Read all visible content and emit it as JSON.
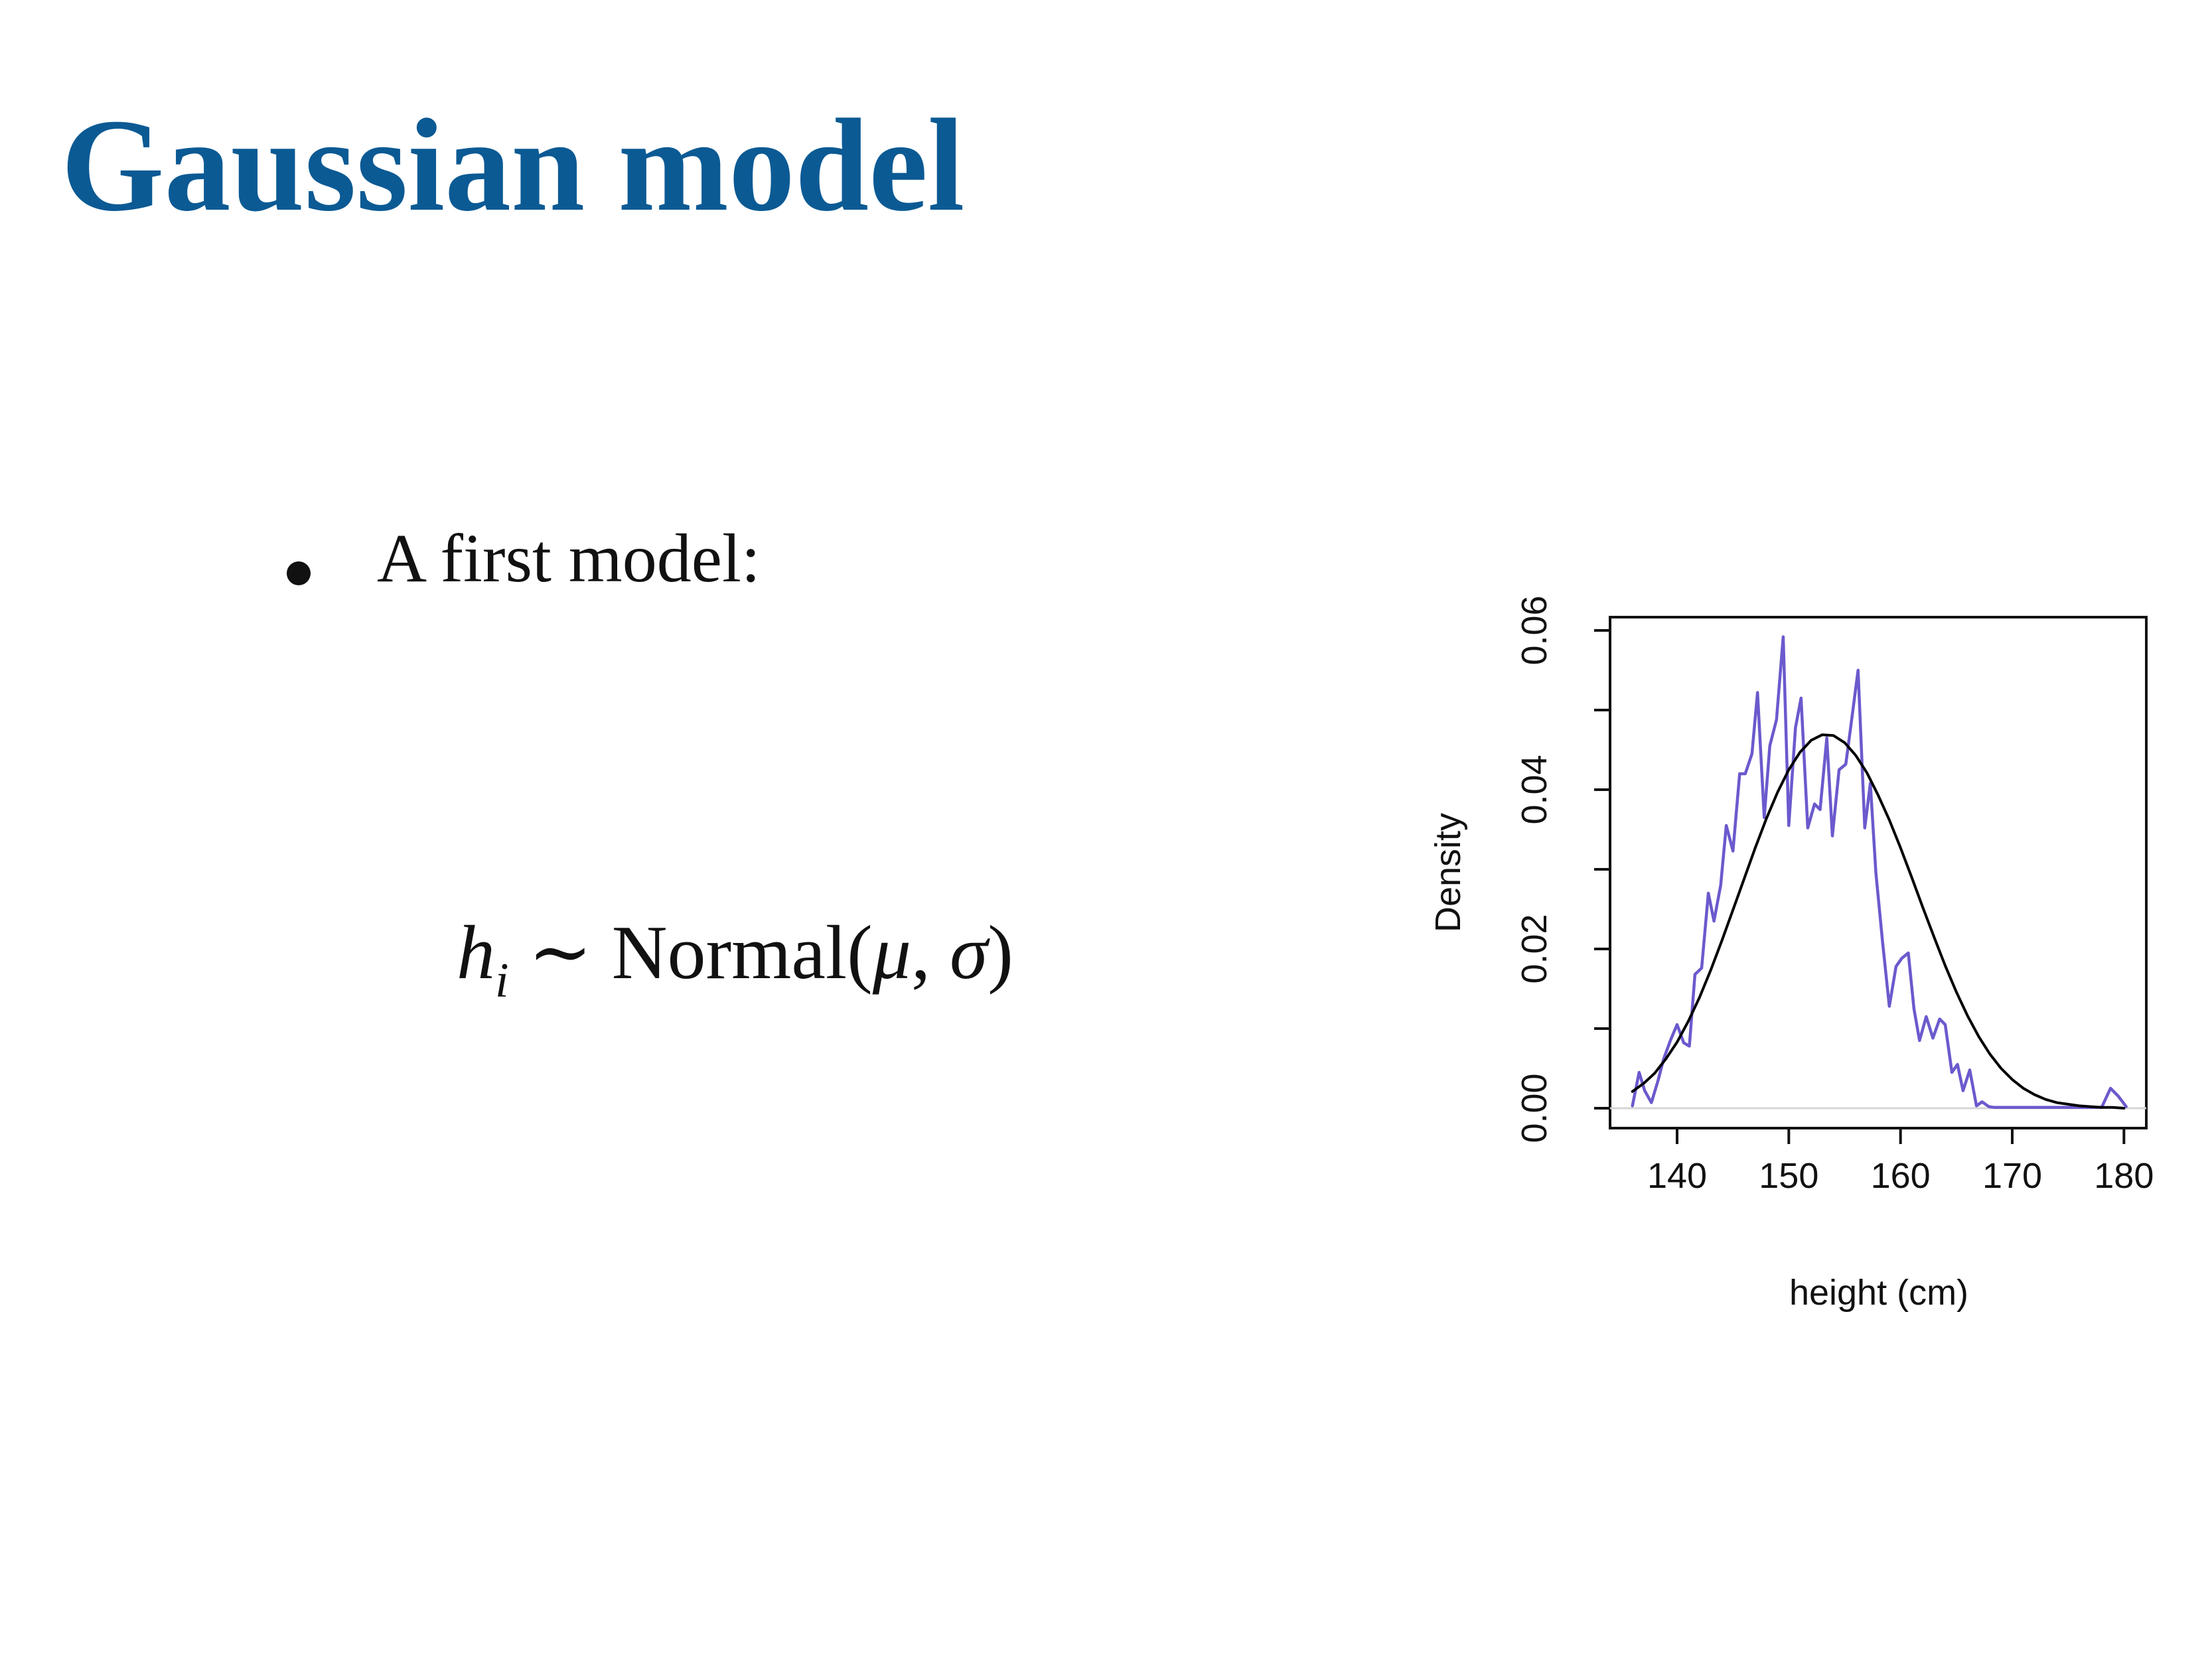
{
  "slide": {
    "title": "Gaussian model",
    "bullet": "A first model:",
    "formula": {
      "var": "h",
      "sub": "i",
      "tilde": "∼",
      "dist": "Normal(",
      "mu": "μ",
      "comma": ", ",
      "sigma": "σ",
      "close": ")"
    }
  },
  "colors": {
    "title": "#0b5a94",
    "density_line": "#6a5acd",
    "normal_curve": "#000000"
  },
  "chart_data": {
    "type": "line",
    "title": "",
    "xlabel": "height (cm)",
    "ylabel": "Density",
    "xlim": [
      134,
      182
    ],
    "ylim": [
      0,
      0.061
    ],
    "xticks": [
      140,
      150,
      160,
      170,
      180
    ],
    "xtick_labels": [
      "140",
      "150",
      "160",
      "170",
      "180"
    ],
    "yticks": [
      0.0,
      0.01,
      0.02,
      0.03,
      0.04,
      0.05,
      0.06
    ],
    "ytick_labels": [
      "0.00",
      "0.02",
      "0.04",
      "0.06"
    ],
    "ytick_label_values": [
      0.0,
      0.02,
      0.04,
      0.06
    ],
    "grid": false,
    "series": [
      {
        "style": "density",
        "color": "#6a5acd",
        "x": [
          136.0,
          136.6,
          137.1,
          137.7,
          138.3,
          138.8,
          139.4,
          140.0,
          140.6,
          141.1,
          141.6,
          142.2,
          142.8,
          143.3,
          143.9,
          144.4,
          145.0,
          145.6,
          146.1,
          146.7,
          147.2,
          147.8,
          148.3,
          148.9,
          149.5,
          150.0,
          150.6,
          151.1,
          151.7,
          152.3,
          152.8,
          153.4,
          153.9,
          154.5,
          155.1,
          155.6,
          156.2,
          156.8,
          157.3,
          157.8,
          158.4,
          159.0,
          159.6,
          160.1,
          160.7,
          161.2,
          161.7,
          162.3,
          162.9,
          163.5,
          164.0,
          164.6,
          165.1,
          165.6,
          166.2,
          166.8,
          167.3,
          167.9,
          168.4,
          169.0,
          169.5,
          170.1,
          170.6,
          171.2,
          171.8,
          172.3,
          172.9,
          173.5,
          174.0,
          175.0,
          176.0,
          177.0,
          178.0,
          178.8,
          179.5,
          180.2
        ],
        "y": [
          0.0003,
          0.0045,
          0.0022,
          0.0007,
          0.0035,
          0.0062,
          0.0085,
          0.0105,
          0.0082,
          0.0078,
          0.0168,
          0.0176,
          0.027,
          0.0235,
          0.028,
          0.0355,
          0.0323,
          0.042,
          0.042,
          0.0445,
          0.0522,
          0.0365,
          0.0455,
          0.0488,
          0.0592,
          0.0355,
          0.0478,
          0.0515,
          0.0352,
          0.0382,
          0.0375,
          0.0465,
          0.0342,
          0.0425,
          0.0432,
          0.0485,
          0.055,
          0.0352,
          0.0408,
          0.0295,
          0.0208,
          0.0128,
          0.0178,
          0.0188,
          0.0195,
          0.0125,
          0.0085,
          0.0115,
          0.0088,
          0.0112,
          0.0105,
          0.0045,
          0.0055,
          0.0022,
          0.0048,
          0.0003,
          0.0008,
          0.0002,
          0.0001,
          0.0001,
          0.0001,
          0.0001,
          0.0001,
          0.0001,
          0.0001,
          0.0001,
          0.0001,
          0.0001,
          0.0001,
          0.0001,
          0.0001,
          0.0001,
          0.0001,
          0.0025,
          0.0015,
          0.0002
        ]
      },
      {
        "style": "normal",
        "color": "#000000",
        "x": [
          136,
          137,
          138,
          139,
          140,
          141,
          142,
          143,
          144,
          145,
          146,
          147,
          148,
          149,
          150,
          151,
          152,
          153,
          154,
          155,
          156,
          157,
          158,
          159,
          160,
          161,
          162,
          163,
          164,
          165,
          166,
          167,
          168,
          169,
          170,
          171,
          172,
          173,
          174,
          175,
          176,
          177,
          178,
          179,
          180
        ],
        "y": [
          0.0021,
          0.0031,
          0.0044,
          0.0062,
          0.0083,
          0.0109,
          0.0139,
          0.0173,
          0.021,
          0.0249,
          0.0288,
          0.0327,
          0.0364,
          0.0397,
          0.0425,
          0.0447,
          0.0462,
          0.0469,
          0.0468,
          0.0459,
          0.0443,
          0.0421,
          0.0393,
          0.0362,
          0.0327,
          0.029,
          0.0252,
          0.0215,
          0.0179,
          0.0146,
          0.0116,
          0.009,
          0.0068,
          0.005,
          0.0036,
          0.0025,
          0.0017,
          0.0011,
          0.0007,
          0.0005,
          0.0003,
          0.0002,
          0.0001,
          0.0001,
          0.0
        ]
      }
    ]
  }
}
